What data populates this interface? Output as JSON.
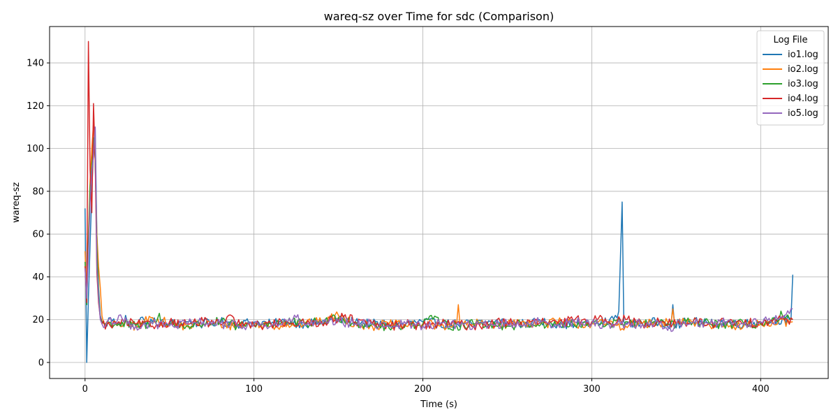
{
  "chart_data": {
    "type": "line",
    "title": "wareq-sz over Time for sdc (Comparison)",
    "xlabel": "Time (s)",
    "ylabel": "wareq-sz",
    "xlim": [
      -21,
      440
    ],
    "ylim": [
      -7.5,
      157
    ],
    "xticks": [
      0,
      100,
      200,
      300,
      400
    ],
    "yticks": [
      0,
      20,
      40,
      60,
      80,
      100,
      120,
      140
    ],
    "grid": true,
    "legend": {
      "title": "Log File",
      "placement": "top-right"
    },
    "series": [
      {
        "name": "io1.log",
        "color": "#1f77b4",
        "points": [
          [
            0,
            72
          ],
          [
            1,
            0
          ],
          [
            2,
            30
          ],
          [
            3,
            55
          ],
          [
            4,
            80
          ],
          [
            5,
            100
          ],
          [
            6,
            110
          ],
          [
            7,
            60
          ],
          [
            8,
            35
          ],
          [
            9,
            22
          ],
          [
            10,
            19
          ],
          [
            12,
            17
          ],
          [
            15,
            21
          ],
          [
            18,
            18
          ],
          [
            20,
            19
          ],
          [
            22,
            17
          ],
          [
            24,
            22
          ],
          [
            26,
            18
          ],
          [
            30,
            17
          ],
          [
            33,
            21
          ],
          [
            36,
            18
          ],
          [
            40,
            19
          ],
          [
            50,
            18
          ],
          [
            60,
            19
          ],
          [
            70,
            18
          ],
          [
            80,
            19
          ],
          [
            90,
            18
          ],
          [
            100,
            19
          ],
          [
            110,
            18
          ],
          [
            120,
            19
          ],
          [
            130,
            18
          ],
          [
            140,
            19
          ],
          [
            150,
            20
          ],
          [
            160,
            19
          ],
          [
            170,
            18
          ],
          [
            180,
            18
          ],
          [
            190,
            18
          ],
          [
            200,
            19
          ],
          [
            210,
            18
          ],
          [
            220,
            18
          ],
          [
            230,
            18
          ],
          [
            240,
            19
          ],
          [
            250,
            19
          ],
          [
            260,
            18
          ],
          [
            270,
            19
          ],
          [
            280,
            18
          ],
          [
            290,
            18
          ],
          [
            300,
            18
          ],
          [
            310,
            19
          ],
          [
            314,
            22
          ],
          [
            316,
            24
          ],
          [
            318,
            75
          ],
          [
            319,
            19
          ],
          [
            320,
            18
          ],
          [
            330,
            18
          ],
          [
            340,
            19
          ],
          [
            347,
            18
          ],
          [
            348,
            27
          ],
          [
            349,
            18
          ],
          [
            360,
            19
          ],
          [
            370,
            18
          ],
          [
            380,
            19
          ],
          [
            390,
            18
          ],
          [
            400,
            19
          ],
          [
            410,
            20
          ],
          [
            417,
            20
          ],
          [
            418,
            21
          ],
          [
            419,
            41
          ]
        ]
      },
      {
        "name": "io2.log",
        "color": "#ff7f0e",
        "points": [
          [
            0,
            52
          ],
          [
            1,
            30
          ],
          [
            2,
            60
          ],
          [
            3,
            85
          ],
          [
            4,
            100
          ],
          [
            5,
            112
          ],
          [
            6,
            95
          ],
          [
            7,
            60
          ],
          [
            8,
            45
          ],
          [
            9,
            35
          ],
          [
            10,
            22
          ],
          [
            12,
            18
          ],
          [
            15,
            17
          ],
          [
            20,
            18
          ],
          [
            30,
            17
          ],
          [
            40,
            21
          ],
          [
            50,
            18
          ],
          [
            60,
            17
          ],
          [
            70,
            18
          ],
          [
            80,
            18
          ],
          [
            90,
            17
          ],
          [
            100,
            18
          ],
          [
            110,
            17
          ],
          [
            120,
            18
          ],
          [
            130,
            18
          ],
          [
            140,
            19
          ],
          [
            150,
            22
          ],
          [
            160,
            18
          ],
          [
            170,
            17
          ],
          [
            180,
            18
          ],
          [
            190,
            17
          ],
          [
            200,
            18
          ],
          [
            210,
            17
          ],
          [
            220,
            18
          ],
          [
            221,
            27
          ],
          [
            222,
            18
          ],
          [
            230,
            18
          ],
          [
            240,
            18
          ],
          [
            250,
            18
          ],
          [
            260,
            19
          ],
          [
            270,
            18
          ],
          [
            280,
            19
          ],
          [
            290,
            18
          ],
          [
            300,
            18
          ],
          [
            310,
            18
          ],
          [
            320,
            17
          ],
          [
            330,
            18
          ],
          [
            340,
            18
          ],
          [
            347,
            19
          ],
          [
            348,
            25
          ],
          [
            349,
            18
          ],
          [
            360,
            19
          ],
          [
            370,
            17
          ],
          [
            380,
            18
          ],
          [
            390,
            17
          ],
          [
            400,
            18
          ],
          [
            410,
            18
          ],
          [
            419,
            19
          ]
        ]
      },
      {
        "name": "io3.log",
        "color": "#2ca02c",
        "points": [
          [
            0,
            47
          ],
          [
            1,
            27
          ],
          [
            2,
            55
          ],
          [
            3,
            82
          ],
          [
            4,
            92
          ],
          [
            5,
            105
          ],
          [
            6,
            95
          ],
          [
            7,
            55
          ],
          [
            8,
            32
          ],
          [
            9,
            21
          ],
          [
            10,
            19
          ],
          [
            12,
            18
          ],
          [
            20,
            18
          ],
          [
            30,
            17
          ],
          [
            40,
            18
          ],
          [
            44,
            23
          ],
          [
            46,
            17
          ],
          [
            50,
            18
          ],
          [
            60,
            17
          ],
          [
            70,
            18
          ],
          [
            80,
            19
          ],
          [
            90,
            17
          ],
          [
            100,
            18
          ],
          [
            110,
            18
          ],
          [
            120,
            19
          ],
          [
            130,
            18
          ],
          [
            140,
            19
          ],
          [
            150,
            21
          ],
          [
            155,
            20
          ],
          [
            160,
            18
          ],
          [
            170,
            18
          ],
          [
            180,
            16
          ],
          [
            190,
            18
          ],
          [
            200,
            18
          ],
          [
            205,
            22
          ],
          [
            210,
            18
          ],
          [
            220,
            17
          ],
          [
            230,
            18
          ],
          [
            240,
            18
          ],
          [
            250,
            17
          ],
          [
            260,
            18
          ],
          [
            270,
            18
          ],
          [
            280,
            18
          ],
          [
            290,
            17
          ],
          [
            300,
            18
          ],
          [
            310,
            18
          ],
          [
            320,
            19
          ],
          [
            330,
            18
          ],
          [
            340,
            18
          ],
          [
            350,
            18
          ],
          [
            360,
            19
          ],
          [
            370,
            18
          ],
          [
            380,
            18
          ],
          [
            390,
            18
          ],
          [
            400,
            18
          ],
          [
            410,
            19
          ],
          [
            412,
            24
          ],
          [
            414,
            20
          ],
          [
            419,
            20
          ]
        ]
      },
      {
        "name": "io4.log",
        "color": "#d62728",
        "points": [
          [
            0,
            45
          ],
          [
            1,
            28
          ],
          [
            2,
            150
          ],
          [
            3,
            90
          ],
          [
            4,
            70
          ],
          [
            5,
            121
          ],
          [
            6,
            95
          ],
          [
            7,
            42
          ],
          [
            8,
            28
          ],
          [
            9,
            21
          ],
          [
            10,
            18
          ],
          [
            15,
            17
          ],
          [
            20,
            19
          ],
          [
            30,
            18
          ],
          [
            40,
            17
          ],
          [
            50,
            19
          ],
          [
            60,
            18
          ],
          [
            70,
            19
          ],
          [
            80,
            18
          ],
          [
            88,
            21
          ],
          [
            90,
            18
          ],
          [
            100,
            17
          ],
          [
            110,
            18
          ],
          [
            120,
            19
          ],
          [
            130,
            18
          ],
          [
            140,
            19
          ],
          [
            150,
            20
          ],
          [
            152,
            23
          ],
          [
            160,
            19
          ],
          [
            170,
            18
          ],
          [
            180,
            17
          ],
          [
            190,
            18
          ],
          [
            200,
            17
          ],
          [
            210,
            18
          ],
          [
            220,
            18
          ],
          [
            230,
            17
          ],
          [
            240,
            18
          ],
          [
            250,
            19
          ],
          [
            260,
            18
          ],
          [
            270,
            19
          ],
          [
            280,
            18
          ],
          [
            290,
            20
          ],
          [
            300,
            19
          ],
          [
            305,
            22
          ],
          [
            310,
            19
          ],
          [
            320,
            20
          ],
          [
            330,
            18
          ],
          [
            340,
            19
          ],
          [
            350,
            18
          ],
          [
            360,
            19
          ],
          [
            370,
            18
          ],
          [
            380,
            19
          ],
          [
            390,
            18
          ],
          [
            400,
            19
          ],
          [
            410,
            20
          ],
          [
            419,
            20
          ]
        ]
      },
      {
        "name": "io5.log",
        "color": "#9467bd",
        "points": [
          [
            0,
            44
          ],
          [
            1,
            30
          ],
          [
            2,
            50
          ],
          [
            3,
            75
          ],
          [
            4,
            90
          ],
          [
            5,
            96
          ],
          [
            6,
            110
          ],
          [
            7,
            45
          ],
          [
            8,
            30
          ],
          [
            9,
            20
          ],
          [
            10,
            18
          ],
          [
            12,
            17
          ],
          [
            15,
            21
          ],
          [
            18,
            18
          ],
          [
            20,
            22
          ],
          [
            25,
            18
          ],
          [
            30,
            17
          ],
          [
            40,
            18
          ],
          [
            50,
            17
          ],
          [
            60,
            18
          ],
          [
            70,
            19
          ],
          [
            80,
            18
          ],
          [
            90,
            17
          ],
          [
            100,
            18
          ],
          [
            110,
            17
          ],
          [
            120,
            19
          ],
          [
            125,
            21
          ],
          [
            130,
            18
          ],
          [
            140,
            18
          ],
          [
            150,
            19
          ],
          [
            160,
            18
          ],
          [
            170,
            18
          ],
          [
            180,
            17
          ],
          [
            190,
            18
          ],
          [
            200,
            17
          ],
          [
            210,
            18
          ],
          [
            220,
            18
          ],
          [
            230,
            17
          ],
          [
            240,
            18
          ],
          [
            250,
            18
          ],
          [
            260,
            18
          ],
          [
            270,
            19
          ],
          [
            280,
            18
          ],
          [
            290,
            19
          ],
          [
            300,
            18
          ],
          [
            310,
            18
          ],
          [
            320,
            18
          ],
          [
            330,
            18
          ],
          [
            340,
            18
          ],
          [
            345,
            15
          ],
          [
            350,
            18
          ],
          [
            360,
            19
          ],
          [
            370,
            18
          ],
          [
            380,
            19
          ],
          [
            390,
            18
          ],
          [
            400,
            19
          ],
          [
            410,
            20
          ],
          [
            414,
            22
          ],
          [
            419,
            25
          ]
        ]
      }
    ]
  }
}
